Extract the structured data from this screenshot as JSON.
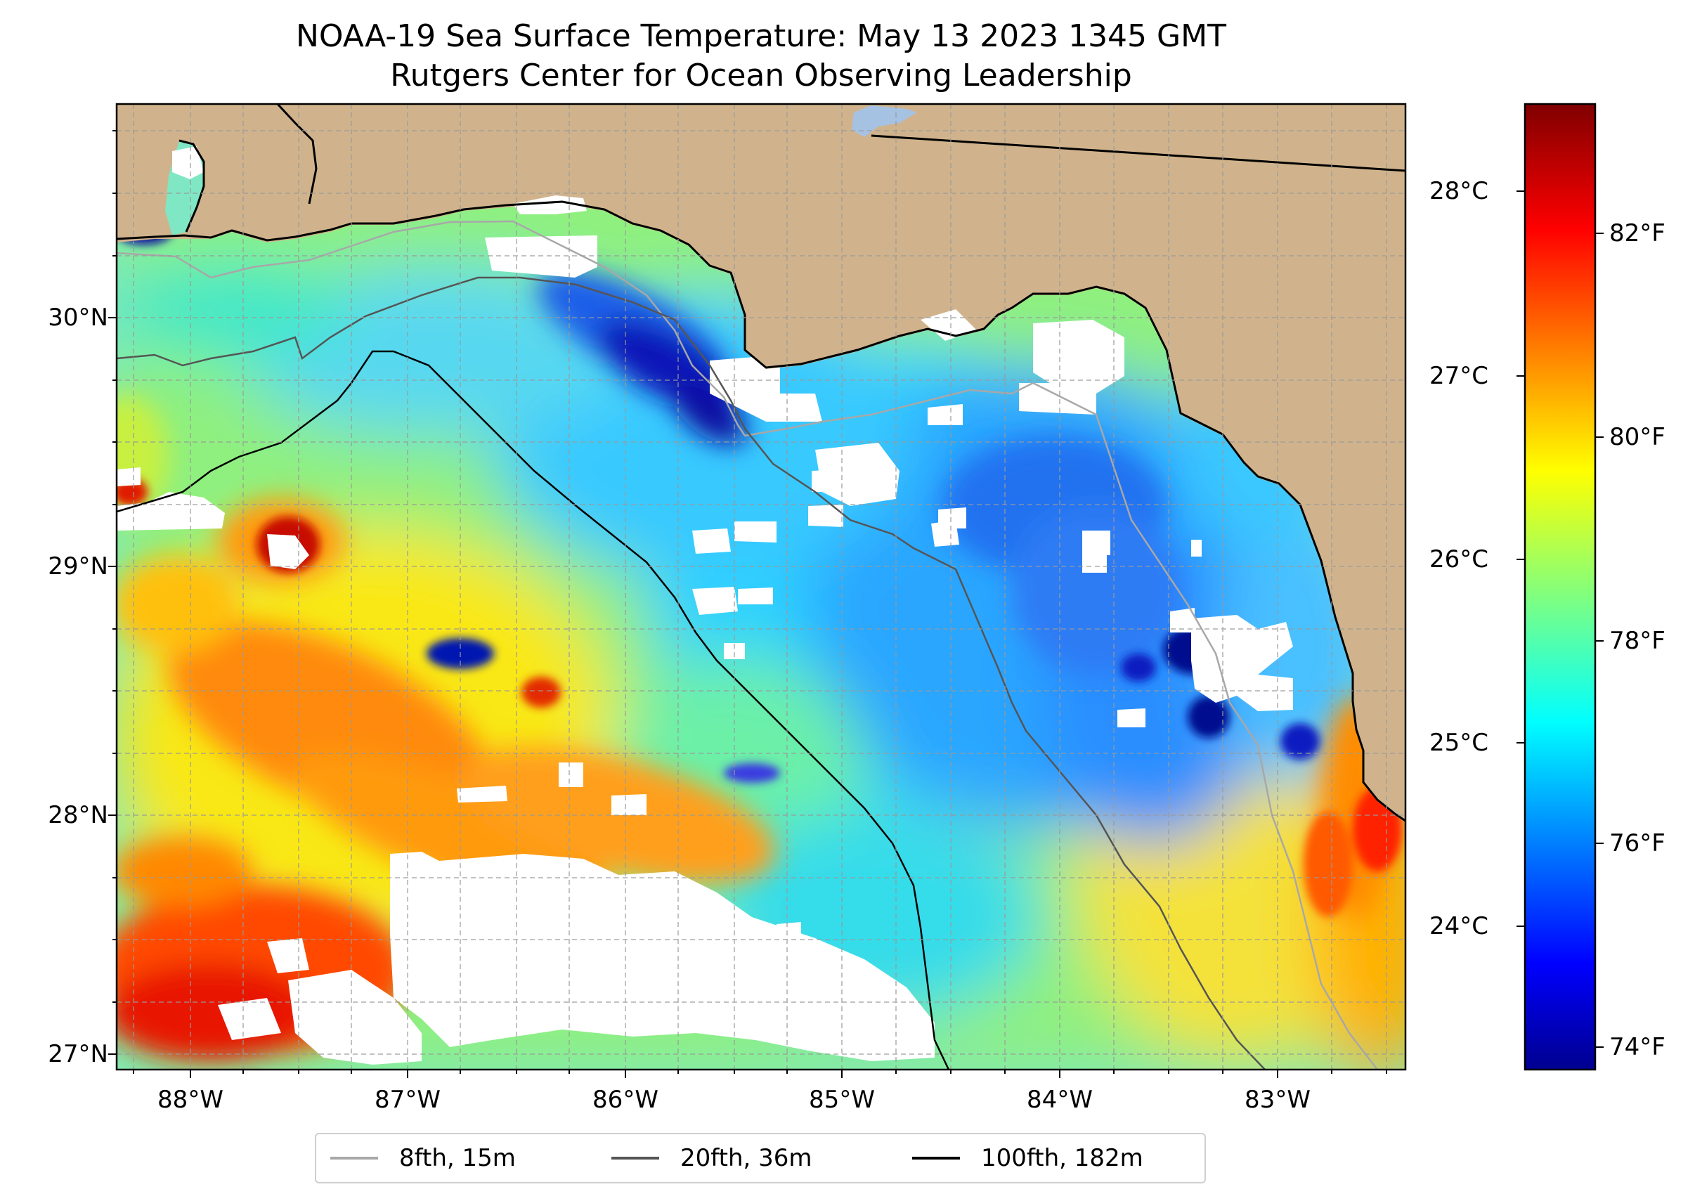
{
  "title": {
    "line1": "NOAA-19 Sea Surface Temperature: May 13 2023 1345 GMT",
    "line2": "Rutgers Center for Ocean Observing Leadership"
  },
  "map": {
    "region": "Northeastern Gulf of Mexico",
    "lon_range": [
      -88.33,
      -82.4
    ],
    "lat_range": [
      26.93,
      30.85
    ],
    "lat_labels": [
      "30°N",
      "29°N",
      "28°N",
      "27°N"
    ],
    "lon_labels": [
      "88°W",
      "87°W",
      "86°W",
      "85°W",
      "84°W",
      "83°W"
    ],
    "colors": {
      "land": "#d0b38c",
      "cloud_mask": "#ffffff",
      "coastline": "#000000",
      "lake": "#a6c2e3"
    }
  },
  "colorbar": {
    "colormap": "jet",
    "celsius_labels": [
      "28°C",
      "27°C",
      "26°C",
      "25°C",
      "24°C"
    ],
    "fahrenheit_labels": [
      "82°F",
      "80°F",
      "78°F",
      "76°F",
      "74°F"
    ],
    "celsius_ticks": [
      28,
      27,
      26,
      25,
      24
    ],
    "fahrenheit_ticks": [
      82,
      80,
      78,
      76,
      74
    ],
    "range_f": [
      73.5,
      83.5
    ]
  },
  "legend": {
    "items": [
      {
        "label": "8fth, 15m",
        "color": "#a8a8a8"
      },
      {
        "label": "20fth, 36m",
        "color": "#555555"
      },
      {
        "label": "100fth, 182m",
        "color": "#000000"
      }
    ]
  }
}
